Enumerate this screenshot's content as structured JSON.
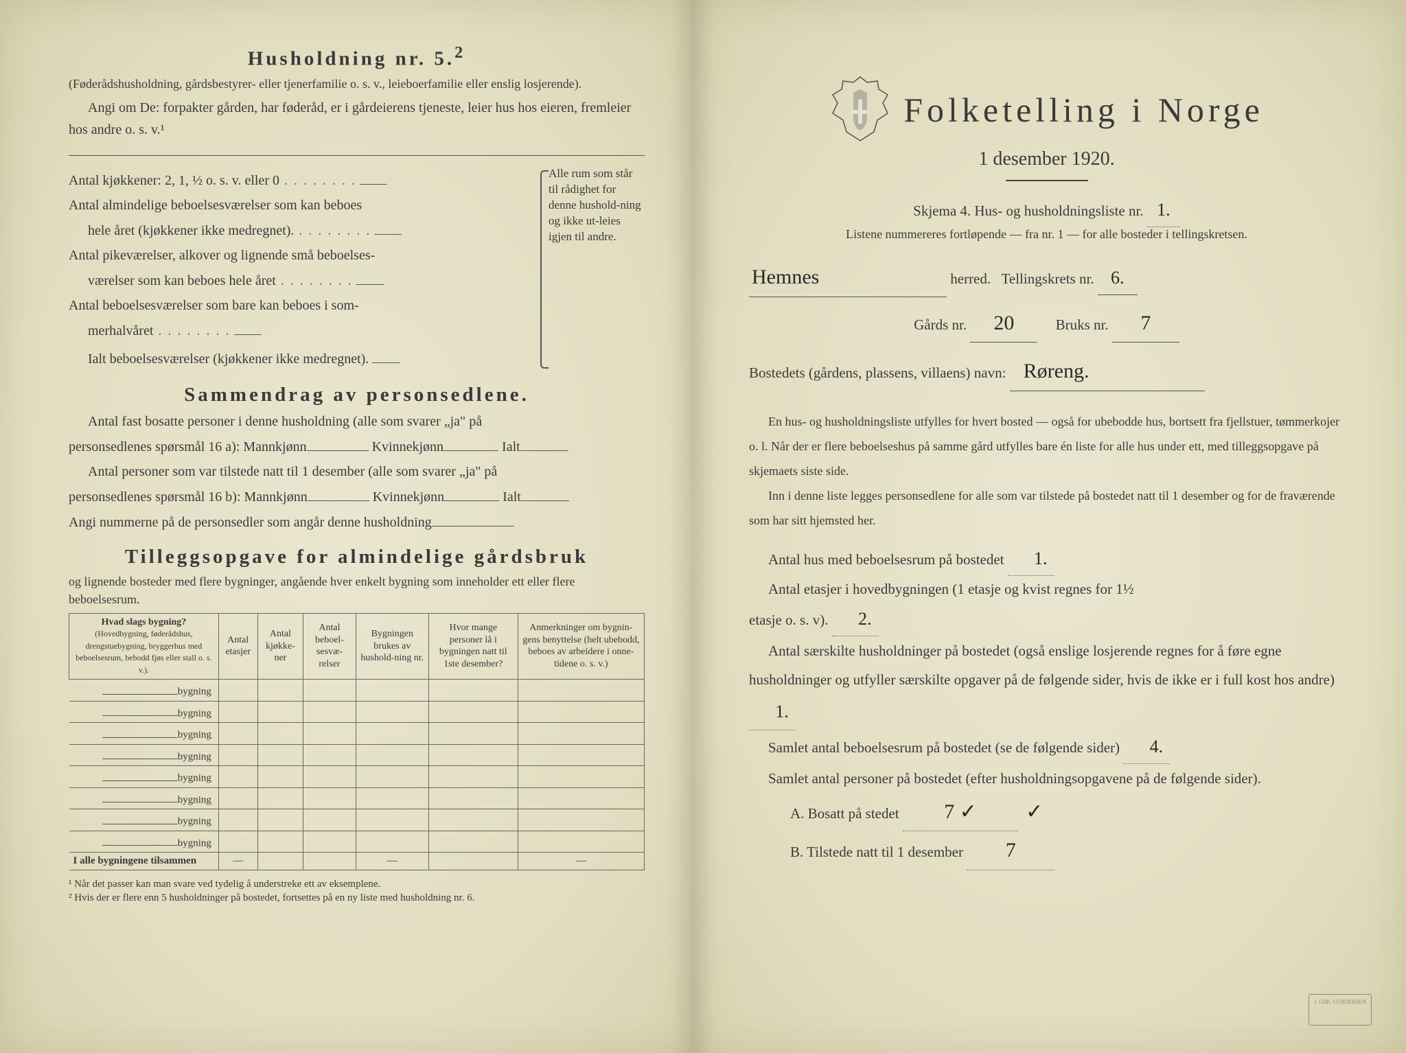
{
  "left": {
    "heading": "Husholdning nr. 5.",
    "heading_sup": "2",
    "intro1": "(Føderådshusholdning, gårdsbestyrer- eller tjenerfamilie o. s. v., leieboerfamilie eller enslig losjerende).",
    "intro2": "Angi om De: forpakter gården, har føderåd, er i gårdeierens tjeneste, leier hus hos eieren, fremleier hos andre o. s. v.¹",
    "rooms": {
      "l1": "Antal kjøkkener: 2, 1, ½ o. s. v. eller 0",
      "l2a": "Antal almindelige beboelsesværelser som kan beboes",
      "l2b": "hele året (kjøkkener ikke medregnet).",
      "l3a": "Antal pikeværelser, alkover og lignende små beboelses-",
      "l3b": "værelser som kan beboes hele året",
      "l4a": "Antal beboelsesværelser som bare kan beboes i som-",
      "l4b": "merhalvåret",
      "l5": "Ialt beboelsesværelser (kjøkkener ikke medregnet).",
      "brace": "Alle rum som står til rådighet for denne hushold-ning og ikke ut-leies igjen til andre."
    },
    "summary_heading": "Sammendrag av personsedlene.",
    "summary_p1a": "Antal fast bosatte personer i denne husholdning (alle som svarer „ja\" på",
    "summary_p1b": "personsedlenes spørsmål 16 a): Mannkjønn",
    "summary_k": "Kvinnekjønn",
    "summary_ialt": "Ialt",
    "summary_p2a": "Antal personer som var tilstede natt til 1 desember (alle som svarer „ja\" på",
    "summary_p2b": "personsedlenes spørsmål 16 b): Mannkjønn",
    "summary_p3": "Angi nummerne på de personsedler som angår denne husholdning",
    "tillegg_heading": "Tilleggsopgave for almindelige gårdsbruk",
    "tillegg_sub": "og lignende bosteder med flere bygninger, angående hver enkelt bygning som inneholder ett eller flere beboelsesrum.",
    "table": {
      "h1": "Hvad slags bygning?",
      "h1sub": "(Hovedbygning, føderådshus, drengstuebygning, bryggerhus med beboelsesrum, bebodd fjøs eller stall o. s. v.).",
      "h2": "Antal etasjer",
      "h3": "Antal kjøkke-ner",
      "h4": "Antal beboel-sesvæ-relser",
      "h5": "Bygningen brukes av hushold-ning nr.",
      "h6": "Hvor mange personer lå i bygningen natt til 1ste desember?",
      "h7": "Anmerkninger om bygnin-gens benyttelse (helt ubebodd, beboes av arbeidere i onne-tidene o. s. v.)",
      "rowlabel": "bygning",
      "totalrow": "I alle bygningene tilsammen"
    },
    "footnote1": "¹ Når det passer kan man svare ved tydelig å understreke ett av eksemplene.",
    "footnote2": "² Hvis der er flere enn 5 husholdninger på bostedet, fortsettes på en ny liste med husholdning nr. 6."
  },
  "right": {
    "title": "Folketelling i Norge",
    "date": "1 desember 1920.",
    "skjema": "Skjema 4.  Hus- og husholdningsliste nr.",
    "skjema_val": "1.",
    "listene": "Listene nummereres fortløpende — fra nr. 1 — for alle bosteder i tellingskretsen.",
    "herred_val": "Hemnes",
    "herred_lbl": "herred.",
    "tk_lbl": "Tellingskrets nr.",
    "tk_val": "6.",
    "gards_lbl": "Gårds nr.",
    "gards_val": "20",
    "bruks_lbl": "Bruks nr.",
    "bruks_val": "7",
    "bostedets_lbl": "Bostedets (gårdens, plassens, villaens) navn:",
    "bostedets_val": "Røreng.",
    "body1": "En hus- og husholdningsliste utfylles for hvert bosted — også for ubebodde hus, bortsett fra fjellstuer, tømmerkojer o. l.  Når der er flere beboelseshus på samme gård utfylles bare én liste for alle hus under ett, med tilleggsopgave på skjemaets siste side.",
    "body2": "Inn i denne liste legges personsedlene for alle som var tilstede på bostedet natt til 1 desember og for de fraværende som har sitt hjemsted her.",
    "q1": "Antal hus med beboelsesrum på bostedet",
    "q1_val": "1.",
    "q2a": "Antal etasjer i hovedbygningen (1 etasje og kvist regnes for 1½",
    "q2b": "etasje o. s. v).",
    "q2_val": "2.",
    "q3": "Antal særskilte husholdninger på bostedet (også enslige losjerende regnes for å føre egne husholdninger og utfyller særskilte opgaver på de følgende sider, hvis de ikke er i full kost hos andre)",
    "q3_val": "1.",
    "q4": "Samlet antal beboelsesrum på bostedet (se de følgende sider)",
    "q4_val": "4.",
    "q5": "Samlet antal personer på bostedet (efter husholdningsopgavene på de følgende sider).",
    "qa_lbl": "A.  Bosatt på stedet",
    "qa_val": "7 ✓",
    "qb_lbl": "B.  Tilstede natt til 1 desember",
    "qb_val": "7"
  }
}
